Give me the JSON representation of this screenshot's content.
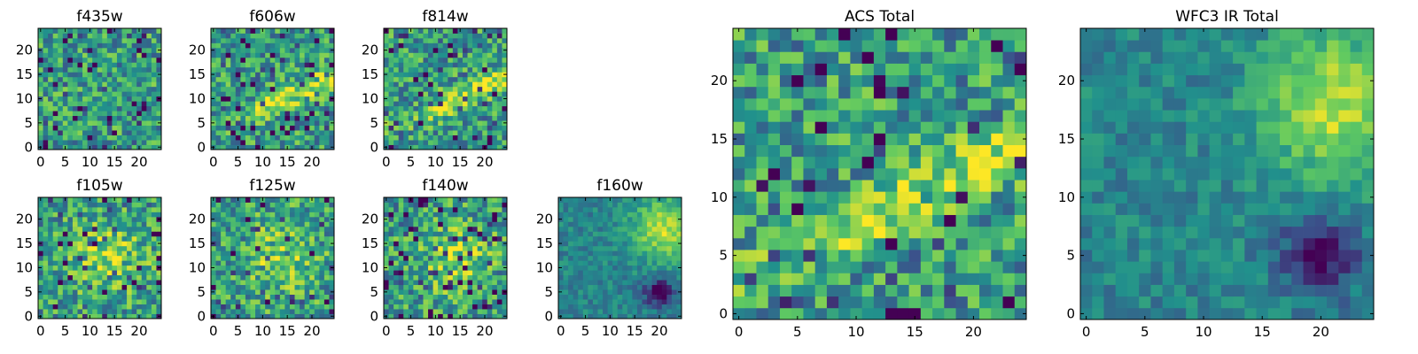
{
  "figure": {
    "description": "Grid of pixel cutout images per HST filter with ACS and WFC3 IR totals",
    "colormap": [
      "#440154",
      "#3b528b",
      "#21918c",
      "#5ec962",
      "#fde725"
    ]
  },
  "chart_data": [
    {
      "type": "heatmap",
      "title": "f435w",
      "grid_size": 25,
      "xlim": [
        0,
        24
      ],
      "ylim": [
        0,
        24
      ],
      "xticks": [
        "0",
        "5",
        "10",
        "15",
        "20"
      ],
      "yticks": [
        "0",
        "5",
        "10",
        "15",
        "20"
      ],
      "seed": 11,
      "pattern": "noise"
    },
    {
      "type": "heatmap",
      "title": "f606w",
      "grid_size": 25,
      "xlim": [
        0,
        24
      ],
      "ylim": [
        0,
        24
      ],
      "xticks": [
        "0",
        "5",
        "10",
        "15",
        "20"
      ],
      "yticks": [
        "0",
        "5",
        "10",
        "15",
        "20"
      ],
      "seed": 23,
      "pattern": "streak"
    },
    {
      "type": "heatmap",
      "title": "f814w",
      "grid_size": 25,
      "xlim": [
        0,
        24
      ],
      "ylim": [
        0,
        24
      ],
      "xticks": [
        "0",
        "5",
        "10",
        "15",
        "20"
      ],
      "yticks": [
        "0",
        "5",
        "10",
        "15",
        "20"
      ],
      "seed": 37,
      "pattern": "streak"
    },
    {
      "type": "heatmap",
      "title": "f105w",
      "grid_size": 25,
      "xlim": [
        0,
        24
      ],
      "ylim": [
        0,
        24
      ],
      "xticks": [
        "0",
        "5",
        "10",
        "15",
        "20"
      ],
      "yticks": [
        "0",
        "5",
        "10",
        "15",
        "20"
      ],
      "seed": 41,
      "pattern": "blob"
    },
    {
      "type": "heatmap",
      "title": "f125w",
      "grid_size": 25,
      "xlim": [
        0,
        24
      ],
      "ylim": [
        0,
        24
      ],
      "xticks": [
        "0",
        "5",
        "10",
        "15",
        "20"
      ],
      "yticks": [
        "0",
        "5",
        "10",
        "15",
        "20"
      ],
      "seed": 53,
      "pattern": "blob"
    },
    {
      "type": "heatmap",
      "title": "f140w",
      "grid_size": 25,
      "xlim": [
        0,
        24
      ],
      "ylim": [
        0,
        24
      ],
      "xticks": [
        "0",
        "5",
        "10",
        "15",
        "20"
      ],
      "yticks": [
        "0",
        "5",
        "10",
        "15",
        "20"
      ],
      "seed": 67,
      "pattern": "blob"
    },
    {
      "type": "heatmap",
      "title": "f160w",
      "grid_size": 25,
      "xlim": [
        0,
        24
      ],
      "ylim": [
        0,
        24
      ],
      "xticks": [
        "0",
        "5",
        "10",
        "15",
        "20"
      ],
      "yticks": [
        "0",
        "5",
        "10",
        "15",
        "20"
      ],
      "seed": 79,
      "pattern": "smooth"
    },
    {
      "type": "heatmap",
      "title": "ACS Total",
      "grid_size": 25,
      "xlim": [
        0,
        24
      ],
      "ylim": [
        0,
        24
      ],
      "xticks": [
        "0",
        "5",
        "10",
        "15",
        "20"
      ],
      "yticks": [
        "0",
        "5",
        "10",
        "15",
        "20"
      ],
      "seed": 97,
      "pattern": "streak"
    },
    {
      "type": "heatmap",
      "title": "WFC3 IR Total",
      "grid_size": 25,
      "xlim": [
        0,
        24
      ],
      "ylim": [
        0,
        24
      ],
      "xticks": [
        "0",
        "5",
        "10",
        "15",
        "20"
      ],
      "yticks": [
        "0",
        "5",
        "10",
        "15",
        "20"
      ],
      "seed": 113,
      "pattern": "smooth"
    }
  ]
}
